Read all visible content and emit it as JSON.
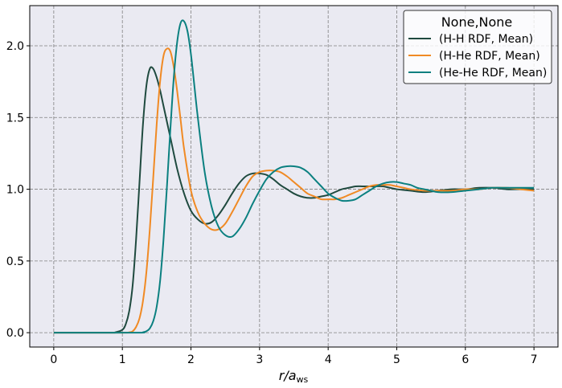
{
  "chart_data": {
    "type": "line",
    "xlabel": "r/a",
    "xlabel_sub": "ws",
    "xlim": [
      -0.35,
      7.35
    ],
    "ylim": [
      -0.1,
      2.28
    ],
    "xticks": [
      0,
      1,
      2,
      3,
      4,
      5,
      6,
      7
    ],
    "yticks": [
      0.0,
      0.5,
      1.0,
      1.5,
      2.0
    ],
    "ytick_labels": [
      "0.0",
      "0.5",
      "1.0",
      "1.5",
      "2.0"
    ],
    "grid": true,
    "legend_title": "None,None",
    "legend_position": "top-right",
    "series": [
      {
        "name": "(H-H RDF, Mean)",
        "color": "#1f4a3f",
        "x": [
          0,
          0.8,
          0.9,
          1.0,
          1.05,
          1.1,
          1.15,
          1.2,
          1.25,
          1.3,
          1.35,
          1.4,
          1.45,
          1.5,
          1.55,
          1.6,
          1.7,
          1.8,
          1.9,
          2.0,
          2.1,
          2.2,
          2.3,
          2.4,
          2.5,
          2.6,
          2.7,
          2.8,
          2.9,
          3.0,
          3.1,
          3.2,
          3.3,
          3.4,
          3.5,
          3.6,
          3.7,
          3.8,
          3.9,
          4.0,
          4.1,
          4.2,
          4.3,
          4.4,
          4.5,
          4.6,
          4.7,
          4.8,
          4.9,
          5.0,
          5.2,
          5.4,
          5.6,
          5.8,
          6.0,
          6.2,
          6.4,
          6.6,
          6.8,
          7.0
        ],
        "y": [
          0,
          0,
          0.003,
          0.02,
          0.06,
          0.15,
          0.33,
          0.65,
          1.05,
          1.45,
          1.72,
          1.84,
          1.84,
          1.78,
          1.69,
          1.58,
          1.36,
          1.14,
          0.97,
          0.85,
          0.79,
          0.76,
          0.77,
          0.82,
          0.89,
          0.97,
          1.04,
          1.09,
          1.11,
          1.11,
          1.1,
          1.07,
          1.03,
          1.0,
          0.97,
          0.95,
          0.94,
          0.94,
          0.95,
          0.96,
          0.98,
          1.0,
          1.01,
          1.02,
          1.02,
          1.02,
          1.02,
          1.02,
          1.01,
          1.0,
          0.99,
          0.98,
          0.99,
          1.0,
          1.0,
          1.01,
          1.01,
          1.0,
          1.0,
          1.0
        ]
      },
      {
        "name": "(H-He RDF, Mean)",
        "color": "#f08a24",
        "x": [
          0,
          1.0,
          1.1,
          1.15,
          1.2,
          1.25,
          1.3,
          1.35,
          1.4,
          1.45,
          1.5,
          1.55,
          1.6,
          1.65,
          1.7,
          1.75,
          1.8,
          1.85,
          1.9,
          2.0,
          2.1,
          2.2,
          2.3,
          2.4,
          2.5,
          2.6,
          2.7,
          2.8,
          2.9,
          3.0,
          3.1,
          3.2,
          3.3,
          3.4,
          3.5,
          3.6,
          3.7,
          3.8,
          3.9,
          4.0,
          4.1,
          4.2,
          4.3,
          4.4,
          4.5,
          4.6,
          4.7,
          4.8,
          4.9,
          5.0,
          5.1,
          5.2,
          5.4,
          5.6,
          5.8,
          6.0,
          6.2,
          6.4,
          6.6,
          6.8,
          7.0
        ],
        "y": [
          0,
          0,
          0.003,
          0.01,
          0.04,
          0.1,
          0.22,
          0.42,
          0.72,
          1.08,
          1.45,
          1.75,
          1.93,
          1.98,
          1.96,
          1.85,
          1.68,
          1.48,
          1.28,
          0.99,
          0.84,
          0.76,
          0.72,
          0.72,
          0.76,
          0.84,
          0.93,
          1.02,
          1.09,
          1.12,
          1.13,
          1.13,
          1.12,
          1.09,
          1.05,
          1.01,
          0.97,
          0.95,
          0.93,
          0.93,
          0.93,
          0.94,
          0.96,
          0.98,
          1.0,
          1.02,
          1.03,
          1.03,
          1.03,
          1.02,
          1.01,
          1.0,
          0.99,
          0.99,
          0.99,
          1.0,
          1.0,
          1.01,
          1.01,
          1.0,
          0.99
        ]
      },
      {
        "name": "(He-He RDF, Mean)",
        "color": "#0b8080",
        "x": [
          0,
          1.2,
          1.3,
          1.35,
          1.4,
          1.45,
          1.5,
          1.55,
          1.6,
          1.65,
          1.7,
          1.75,
          1.8,
          1.85,
          1.9,
          1.95,
          2.0,
          2.05,
          2.1,
          2.2,
          2.3,
          2.4,
          2.5,
          2.6,
          2.7,
          2.8,
          2.9,
          3.0,
          3.1,
          3.2,
          3.3,
          3.4,
          3.5,
          3.6,
          3.7,
          3.8,
          3.9,
          4.0,
          4.1,
          4.2,
          4.3,
          4.4,
          4.5,
          4.6,
          4.7,
          4.8,
          4.9,
          5.0,
          5.1,
          5.2,
          5.3,
          5.4,
          5.5,
          5.6,
          5.8,
          6.0,
          6.2,
          6.4,
          6.6,
          6.8,
          7.0
        ],
        "y": [
          0,
          0,
          0.003,
          0.01,
          0.03,
          0.08,
          0.18,
          0.36,
          0.65,
          1.02,
          1.42,
          1.78,
          2.03,
          2.16,
          2.17,
          2.1,
          1.94,
          1.72,
          1.5,
          1.12,
          0.88,
          0.74,
          0.68,
          0.67,
          0.72,
          0.8,
          0.9,
          0.99,
          1.07,
          1.12,
          1.15,
          1.16,
          1.16,
          1.15,
          1.12,
          1.07,
          1.02,
          0.97,
          0.94,
          0.92,
          0.92,
          0.93,
          0.96,
          0.99,
          1.02,
          1.04,
          1.05,
          1.05,
          1.04,
          1.03,
          1.01,
          1.0,
          0.99,
          0.98,
          0.98,
          0.99,
          1.0,
          1.01,
          1.01,
          1.01,
          1.01
        ]
      }
    ]
  }
}
